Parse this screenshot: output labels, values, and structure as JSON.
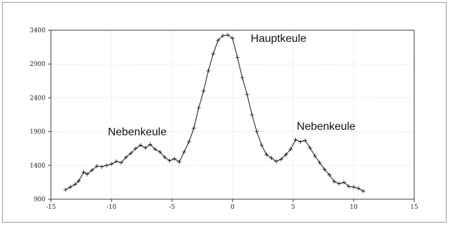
{
  "chart_data": {
    "type": "line",
    "title": "",
    "xlabel": "",
    "ylabel": "",
    "xlim": [
      -15,
      15
    ],
    "ylim": [
      900,
      3400
    ],
    "x_ticks": [
      -15,
      -10,
      -5,
      0,
      5,
      10,
      15
    ],
    "y_ticks": [
      900,
      1400,
      1900,
      2400,
      2900,
      3400
    ],
    "grid": true,
    "legend": "none",
    "marker": "plus",
    "series": [
      {
        "x": [
          -13.8,
          -13.4,
          -13.0,
          -12.7,
          -12.3,
          -12.0,
          -11.6,
          -11.2,
          -10.8,
          -10.4,
          -10.0,
          -9.6,
          -9.2,
          -8.8,
          -8.4,
          -8.0,
          -7.6,
          -7.2,
          -6.8,
          -6.4,
          -6.0,
          -5.6,
          -5.2,
          -4.8,
          -4.4,
          -4.0,
          -3.6,
          -3.2,
          -2.8,
          -2.4,
          -2.0,
          -1.6,
          -1.2,
          -0.8,
          -0.4,
          0.0,
          0.4,
          0.8,
          1.2,
          1.6,
          2.0,
          2.4,
          2.8,
          3.2,
          3.6,
          4.0,
          4.4,
          4.8,
          5.2,
          5.6,
          6.0,
          6.4,
          6.8,
          7.2,
          7.6,
          8.0,
          8.4,
          8.8,
          9.2,
          9.6,
          10.0,
          10.4,
          10.8
        ],
        "values": [
          1040,
          1080,
          1120,
          1170,
          1300,
          1270,
          1330,
          1390,
          1380,
          1400,
          1420,
          1460,
          1440,
          1520,
          1580,
          1650,
          1700,
          1660,
          1710,
          1640,
          1600,
          1520,
          1470,
          1500,
          1450,
          1600,
          1750,
          1950,
          2250,
          2500,
          2800,
          3050,
          3250,
          3320,
          3330,
          3280,
          3000,
          2700,
          2450,
          2150,
          1900,
          1700,
          1560,
          1510,
          1460,
          1490,
          1560,
          1640,
          1780,
          1750,
          1770,
          1660,
          1540,
          1440,
          1340,
          1260,
          1160,
          1130,
          1150,
          1090,
          1080,
          1060,
          1020
        ]
      }
    ],
    "annotations": [
      {
        "text": "Hauptkeule",
        "x": 1.5,
        "y": 3225
      },
      {
        "text": "Nebenkeule",
        "x": -10.3,
        "y": 1845
      },
      {
        "text": "Nebenkeule",
        "x": 5.3,
        "y": 1925
      }
    ]
  }
}
